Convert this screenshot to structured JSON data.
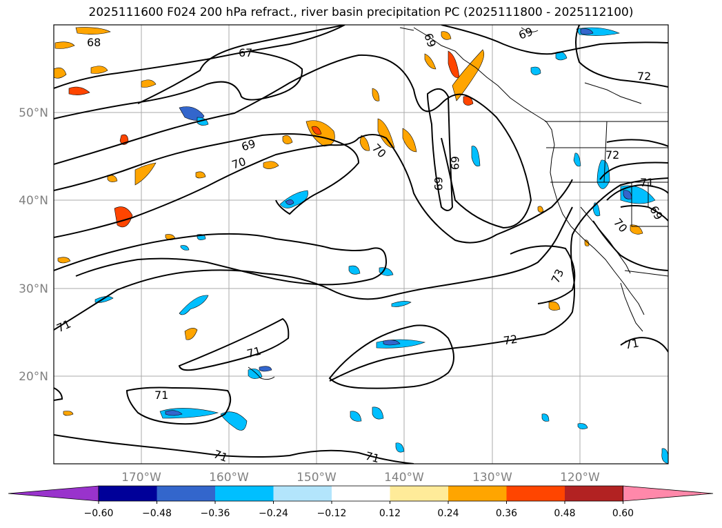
{
  "title": "2025111600 F024 200 hPa refract., river basin precipitation PC (2025111800 - 2025112100)",
  "map": {
    "lat_labels": [
      "50°N",
      "40°N",
      "30°N",
      "20°N"
    ],
    "lon_labels": [
      "170°W",
      "160°W",
      "150°W",
      "140°W",
      "130°W",
      "120°W"
    ],
    "contour_labels": [
      "68",
      "67",
      "69",
      "69",
      "69",
      "70",
      "70",
      "69",
      "69",
      "72",
      "72",
      "71",
      "69",
      "70",
      "73",
      "71",
      "71",
      "72",
      "71",
      "71",
      "71",
      "71"
    ]
  },
  "colorbar": {
    "tick_labels": [
      "−0.60",
      "−0.48",
      "−0.36",
      "−0.24",
      "−0.12",
      "0.12",
      "0.24",
      "0.36",
      "0.48",
      "0.60"
    ],
    "colors": [
      "#9933cc",
      "#000099",
      "#3366cc",
      "#00bfff",
      "#b3e5fc",
      "#ffffff",
      "#ffeb99",
      "#ffa500",
      "#ff4500",
      "#b22222",
      "#ff88aa"
    ]
  }
}
